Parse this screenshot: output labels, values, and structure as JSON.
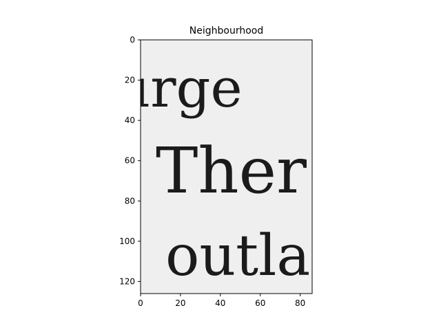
{
  "figure": {
    "title": "Neighbourhood",
    "image_text_lines": [
      "urge",
      "Ther",
      "outla"
    ],
    "image_background": "#efefef",
    "text_color": "#1b1b1b",
    "x_axis": {
      "range": [
        0,
        86
      ],
      "ticks": [
        0,
        20,
        40,
        60,
        80
      ]
    },
    "y_axis": {
      "range": [
        0,
        126
      ],
      "inverted": true,
      "ticks": [
        0,
        20,
        40,
        60,
        80,
        100,
        120
      ]
    }
  }
}
